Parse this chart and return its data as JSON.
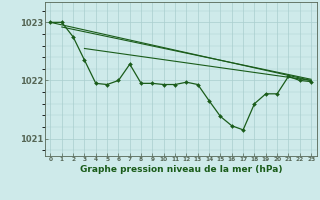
{
  "title": "Graphe pression niveau de la mer (hPa)",
  "bg_color": "#ceeaea",
  "grid_color": "#aacece",
  "line_color": "#1a5c1a",
  "xlim": [
    -0.5,
    23.5
  ],
  "ylim": [
    1020.7,
    1023.35
  ],
  "yticks": [
    1021,
    1022,
    1023
  ],
  "xtick_labels": [
    "0",
    "1",
    "2",
    "3",
    "4",
    "5",
    "6",
    "7",
    "8",
    "9",
    "10",
    "11",
    "12",
    "13",
    "14",
    "15",
    "16",
    "17",
    "18",
    "19",
    "20",
    "21",
    "22",
    "23"
  ],
  "hours": [
    0,
    1,
    2,
    3,
    4,
    5,
    6,
    7,
    8,
    9,
    10,
    11,
    12,
    13,
    14,
    15,
    16,
    17,
    18,
    19,
    20,
    21,
    22,
    23
  ],
  "line_data": [
    1023.0,
    1023.0,
    1022.75,
    1022.35,
    1021.95,
    1021.93,
    1022.0,
    1022.28,
    1021.95,
    1021.95,
    1021.93,
    1021.93,
    1021.97,
    1021.93,
    1021.65,
    1021.38,
    1021.22,
    1021.15,
    1021.6,
    1021.77,
    1021.77,
    1022.07,
    1022.0,
    1021.98
  ],
  "ref_line1": [
    [
      0,
      1023.0
    ],
    [
      23,
      1022.0
    ]
  ],
  "ref_line2": [
    [
      1,
      1022.92
    ],
    [
      23,
      1022.02
    ]
  ],
  "ref_line3": [
    [
      3,
      1022.55
    ],
    [
      23,
      1022.0
    ]
  ]
}
